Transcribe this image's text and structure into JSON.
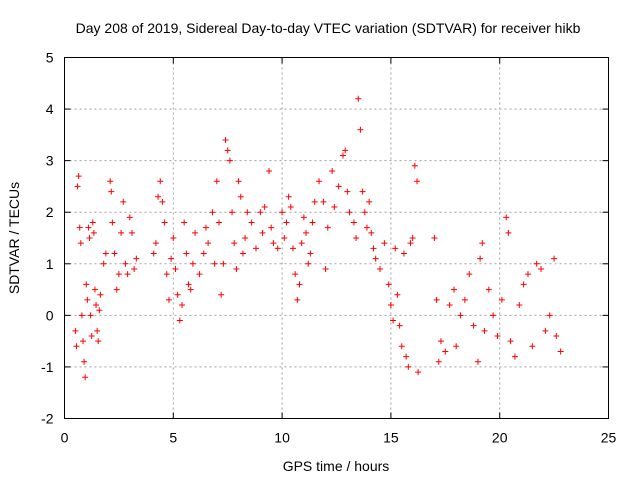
{
  "colors": {
    "series": "#ff0000",
    "grid": "#a0a0a0",
    "axis": "#000000"
  },
  "chart_data": {
    "type": "scatter",
    "title": "Day 208 of 2019, Sidereal Day-to-day VTEC variation (SDTVAR) for receiver hikb",
    "xlabel": "GPS time / hours",
    "ylabel": "SDTVAR / TECUs",
    "xlim": [
      0,
      25
    ],
    "ylim": [
      -2,
      5
    ],
    "xticks": [
      0,
      5,
      10,
      15,
      20,
      25
    ],
    "yticks": [
      -2,
      -1,
      0,
      1,
      2,
      3,
      4,
      5
    ],
    "xtick_labels": [
      "0",
      "5",
      "10",
      "15",
      "20",
      "25"
    ],
    "ytick_labels": [
      "-2",
      "-1",
      "0",
      "1",
      "2",
      "3",
      "4",
      "5"
    ],
    "grid": true,
    "marker": "+",
    "series": [
      {
        "name": "SDTVAR",
        "points": [
          [
            0.5,
            -0.3
          ],
          [
            0.55,
            -0.6
          ],
          [
            0.6,
            2.5
          ],
          [
            0.65,
            2.7
          ],
          [
            0.7,
            1.7
          ],
          [
            0.75,
            1.4
          ],
          [
            0.8,
            0.0
          ],
          [
            0.85,
            -0.5
          ],
          [
            0.9,
            -0.9
          ],
          [
            0.95,
            -1.2
          ],
          [
            1.0,
            0.6
          ],
          [
            1.05,
            0.3
          ],
          [
            1.1,
            1.7
          ],
          [
            1.15,
            1.5
          ],
          [
            1.2,
            0.0
          ],
          [
            1.25,
            -0.4
          ],
          [
            1.3,
            1.8
          ],
          [
            1.35,
            1.6
          ],
          [
            1.4,
            0.5
          ],
          [
            1.45,
            0.2
          ],
          [
            1.5,
            -0.3
          ],
          [
            1.55,
            -0.5
          ],
          [
            1.6,
            0.1
          ],
          [
            1.65,
            0.4
          ],
          [
            1.8,
            1.0
          ],
          [
            1.9,
            1.2
          ],
          [
            2.1,
            2.6
          ],
          [
            2.15,
            2.4
          ],
          [
            2.2,
            1.8
          ],
          [
            2.3,
            1.2
          ],
          [
            2.4,
            0.5
          ],
          [
            2.5,
            0.8
          ],
          [
            2.6,
            1.6
          ],
          [
            2.7,
            2.2
          ],
          [
            2.8,
            1.0
          ],
          [
            2.9,
            0.8
          ],
          [
            3.0,
            1.9
          ],
          [
            3.1,
            1.6
          ],
          [
            3.2,
            0.9
          ],
          [
            3.3,
            1.1
          ],
          [
            4.1,
            1.2
          ],
          [
            4.2,
            1.4
          ],
          [
            4.3,
            2.3
          ],
          [
            4.4,
            2.6
          ],
          [
            4.5,
            2.2
          ],
          [
            4.6,
            1.8
          ],
          [
            4.7,
            0.8
          ],
          [
            4.8,
            0.3
          ],
          [
            4.9,
            1.1
          ],
          [
            5.0,
            1.5
          ],
          [
            5.1,
            0.9
          ],
          [
            5.2,
            0.4
          ],
          [
            5.3,
            -0.1
          ],
          [
            5.4,
            0.2
          ],
          [
            5.5,
            1.8
          ],
          [
            5.6,
            1.2
          ],
          [
            5.7,
            0.6
          ],
          [
            5.8,
            0.5
          ],
          [
            5.9,
            1.0
          ],
          [
            6.0,
            1.6
          ],
          [
            6.2,
            0.8
          ],
          [
            6.4,
            1.2
          ],
          [
            6.5,
            1.7
          ],
          [
            6.6,
            1.4
          ],
          [
            6.8,
            2.0
          ],
          [
            6.9,
            1.0
          ],
          [
            7.0,
            2.6
          ],
          [
            7.1,
            1.8
          ],
          [
            7.2,
            0.4
          ],
          [
            7.3,
            1.0
          ],
          [
            7.4,
            3.4
          ],
          [
            7.5,
            3.2
          ],
          [
            7.6,
            3.0
          ],
          [
            7.7,
            2.0
          ],
          [
            7.8,
            1.4
          ],
          [
            7.9,
            0.9
          ],
          [
            8.0,
            2.6
          ],
          [
            8.1,
            2.3
          ],
          [
            8.2,
            1.2
          ],
          [
            8.3,
            1.5
          ],
          [
            8.4,
            2.0
          ],
          [
            8.6,
            1.8
          ],
          [
            8.8,
            1.3
          ],
          [
            9.0,
            2.0
          ],
          [
            9.1,
            1.6
          ],
          [
            9.2,
            2.1
          ],
          [
            9.4,
            2.8
          ],
          [
            9.5,
            1.7
          ],
          [
            9.6,
            1.4
          ],
          [
            9.8,
            1.3
          ],
          [
            10.0,
            2.0
          ],
          [
            10.1,
            1.5
          ],
          [
            10.2,
            1.8
          ],
          [
            10.3,
            2.3
          ],
          [
            10.4,
            2.1
          ],
          [
            10.5,
            1.3
          ],
          [
            10.6,
            0.8
          ],
          [
            10.7,
            0.3
          ],
          [
            10.8,
            0.6
          ],
          [
            10.9,
            1.4
          ],
          [
            11.0,
            1.9
          ],
          [
            11.1,
            1.6
          ],
          [
            11.2,
            1.0
          ],
          [
            11.3,
            1.2
          ],
          [
            11.4,
            1.8
          ],
          [
            11.5,
            2.2
          ],
          [
            11.7,
            2.6
          ],
          [
            11.9,
            2.2
          ],
          [
            12.0,
            0.9
          ],
          [
            12.1,
            1.7
          ],
          [
            12.3,
            2.8
          ],
          [
            12.4,
            2.1
          ],
          [
            12.6,
            2.5
          ],
          [
            12.8,
            3.1
          ],
          [
            12.9,
            3.2
          ],
          [
            13.0,
            2.4
          ],
          [
            13.1,
            2.0
          ],
          [
            13.3,
            1.8
          ],
          [
            13.4,
            1.5
          ],
          [
            13.5,
            4.2
          ],
          [
            13.6,
            3.6
          ],
          [
            13.7,
            2.4
          ],
          [
            13.8,
            2.0
          ],
          [
            13.9,
            1.7
          ],
          [
            14.0,
            2.2
          ],
          [
            14.1,
            1.6
          ],
          [
            14.2,
            1.3
          ],
          [
            14.3,
            1.1
          ],
          [
            14.5,
            0.9
          ],
          [
            14.7,
            1.4
          ],
          [
            14.9,
            0.6
          ],
          [
            15.0,
            0.2
          ],
          [
            15.1,
            -0.1
          ],
          [
            15.2,
            1.3
          ],
          [
            15.3,
            0.4
          ],
          [
            15.4,
            -0.2
          ],
          [
            15.5,
            -0.6
          ],
          [
            15.6,
            1.2
          ],
          [
            15.7,
            -0.8
          ],
          [
            15.8,
            -1.0
          ],
          [
            15.9,
            1.4
          ],
          [
            16.0,
            1.5
          ],
          [
            16.1,
            2.9
          ],
          [
            16.2,
            2.6
          ],
          [
            16.25,
            -1.1
          ],
          [
            17.0,
            1.5
          ],
          [
            17.1,
            0.3
          ],
          [
            17.2,
            -0.9
          ],
          [
            17.3,
            -0.5
          ],
          [
            17.5,
            -0.7
          ],
          [
            17.7,
            0.2
          ],
          [
            17.9,
            0.5
          ],
          [
            18.0,
            -0.6
          ],
          [
            18.2,
            0.0
          ],
          [
            18.4,
            0.3
          ],
          [
            18.6,
            0.8
          ],
          [
            18.8,
            -0.2
          ],
          [
            19.0,
            -0.9
          ],
          [
            19.1,
            1.1
          ],
          [
            19.2,
            1.4
          ],
          [
            19.3,
            -0.3
          ],
          [
            19.5,
            0.5
          ],
          [
            19.7,
            0.0
          ],
          [
            19.9,
            -0.4
          ],
          [
            20.1,
            0.3
          ],
          [
            20.3,
            1.9
          ],
          [
            20.4,
            1.6
          ],
          [
            20.5,
            -0.5
          ],
          [
            20.7,
            -0.8
          ],
          [
            20.9,
            0.2
          ],
          [
            21.1,
            0.6
          ],
          [
            21.3,
            0.8
          ],
          [
            21.5,
            -0.6
          ],
          [
            21.7,
            1.0
          ],
          [
            21.9,
            0.9
          ],
          [
            22.1,
            -0.3
          ],
          [
            22.3,
            0.0
          ],
          [
            22.5,
            1.1
          ],
          [
            22.6,
            -0.4
          ],
          [
            22.8,
            -0.7
          ]
        ]
      }
    ]
  }
}
